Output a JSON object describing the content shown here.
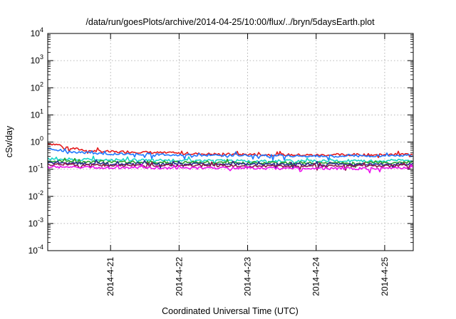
{
  "chart_data": {
    "type": "line",
    "title": "/data/run/goesPlots/archive/2014-04-25/10:00/flux/../bryn/5daysEarth.plot",
    "xlabel": "Coordinated Universal Time (UTC)",
    "ylabel": "cSv/day",
    "yscale": "log",
    "ylim": [
      0.0001,
      10000
    ],
    "xlim": [
      "2014-04-20T02:00",
      "2014-04-25T10:00"
    ],
    "yticks": [
      {
        "base": "10",
        "exp": "-4",
        "value": 0.0001
      },
      {
        "base": "10",
        "exp": "-3",
        "value": 0.001
      },
      {
        "base": "10",
        "exp": "-2",
        "value": 0.01
      },
      {
        "base": "10",
        "exp": "-1",
        "value": 0.1
      },
      {
        "base": "10",
        "exp": "0",
        "value": 1
      },
      {
        "base": "10",
        "exp": "1",
        "value": 10
      },
      {
        "base": "10",
        "exp": "2",
        "value": 100
      },
      {
        "base": "10",
        "exp": "3",
        "value": 1000
      },
      {
        "base": "10",
        "exp": "4",
        "value": 10000
      }
    ],
    "xticks": [
      {
        "label": "2014-4-21",
        "value": "2014-04-21T00:00"
      },
      {
        "label": "2014-4-22",
        "value": "2014-04-22T00:00"
      },
      {
        "label": "2014-4-23",
        "value": "2014-04-23T00:00"
      },
      {
        "label": "2014-4-24",
        "value": "2014-04-24T00:00"
      },
      {
        "label": "2014-4-25",
        "value": "2014-04-25T00:00"
      }
    ],
    "grid": true,
    "series": [
      {
        "color": "#e41a1c",
        "values": [
          [
            "2014-04-20T02:00",
            0.9
          ],
          [
            "2014-04-20T06:00",
            0.78
          ],
          [
            "2014-04-20T10:00",
            0.6
          ],
          [
            "2014-04-20T14:00",
            0.52
          ],
          [
            "2014-04-20T18:00",
            0.47
          ],
          [
            "2014-04-20T22:00",
            0.45
          ],
          [
            "2014-04-21T02:00",
            0.43
          ],
          [
            "2014-04-21T06:00",
            0.44
          ],
          [
            "2014-04-21T12:00",
            0.42
          ],
          [
            "2014-04-21T18:00",
            0.4
          ],
          [
            "2014-04-22T00:00",
            0.38
          ],
          [
            "2014-04-22T12:00",
            0.36
          ],
          [
            "2014-04-23T00:00",
            0.35
          ],
          [
            "2014-04-23T12:00",
            0.34
          ],
          [
            "2014-04-24T00:00",
            0.33
          ],
          [
            "2014-04-24T12:00",
            0.34
          ],
          [
            "2014-04-25T00:00",
            0.34
          ],
          [
            "2014-04-25T10:00",
            0.36
          ]
        ]
      },
      {
        "color": "#1f78ff",
        "values": [
          [
            "2014-04-20T02:00",
            0.56
          ],
          [
            "2014-04-20T06:00",
            0.5
          ],
          [
            "2014-04-20T10:00",
            0.44
          ],
          [
            "2014-04-20T14:00",
            0.41
          ],
          [
            "2014-04-20T18:00",
            0.39
          ],
          [
            "2014-04-20T22:00",
            0.38
          ],
          [
            "2014-04-21T02:00",
            0.37
          ],
          [
            "2014-04-21T12:00",
            0.36
          ],
          [
            "2014-04-22T00:00",
            0.34
          ],
          [
            "2014-04-22T12:00",
            0.33
          ],
          [
            "2014-04-23T00:00",
            0.32
          ],
          [
            "2014-04-23T12:00",
            0.31
          ],
          [
            "2014-04-24T00:00",
            0.3
          ],
          [
            "2014-04-24T12:00",
            0.31
          ],
          [
            "2014-04-25T00:00",
            0.31
          ],
          [
            "2014-04-25T10:00",
            0.32
          ]
        ]
      },
      {
        "color": "#17d5c6",
        "values": [
          [
            "2014-04-20T02:00",
            0.24
          ],
          [
            "2014-04-20T12:00",
            0.23
          ],
          [
            "2014-04-21T00:00",
            0.22
          ],
          [
            "2014-04-21T12:00",
            0.22
          ],
          [
            "2014-04-22T00:00",
            0.21
          ],
          [
            "2014-04-22T12:00",
            0.21
          ],
          [
            "2014-04-23T00:00",
            0.2
          ],
          [
            "2014-04-23T12:00",
            0.2
          ],
          [
            "2014-04-24T00:00",
            0.2
          ],
          [
            "2014-04-24T12:00",
            0.2
          ],
          [
            "2014-04-25T00:00",
            0.2
          ],
          [
            "2014-04-25T10:00",
            0.21
          ]
        ]
      },
      {
        "color": "#2ca02c",
        "values": [
          [
            "2014-04-20T02:00",
            0.2
          ],
          [
            "2014-04-20T12:00",
            0.19
          ],
          [
            "2014-04-21T00:00",
            0.19
          ],
          [
            "2014-04-21T12:00",
            0.18
          ],
          [
            "2014-04-22T00:00",
            0.18
          ],
          [
            "2014-04-22T12:00",
            0.18
          ],
          [
            "2014-04-23T00:00",
            0.17
          ],
          [
            "2014-04-23T12:00",
            0.17
          ],
          [
            "2014-04-24T00:00",
            0.17
          ],
          [
            "2014-04-24T12:00",
            0.17
          ],
          [
            "2014-04-25T00:00",
            0.17
          ],
          [
            "2014-04-25T10:00",
            0.18
          ]
        ]
      },
      {
        "color": "#2b2b8f",
        "values": [
          [
            "2014-04-20T02:00",
            0.17
          ],
          [
            "2014-04-20T12:00",
            0.165
          ],
          [
            "2014-04-21T00:00",
            0.16
          ],
          [
            "2014-04-21T12:00",
            0.16
          ],
          [
            "2014-04-22T00:00",
            0.155
          ],
          [
            "2014-04-22T12:00",
            0.155
          ],
          [
            "2014-04-23T00:00",
            0.15
          ],
          [
            "2014-04-23T12:00",
            0.15
          ],
          [
            "2014-04-24T00:00",
            0.15
          ],
          [
            "2014-04-24T12:00",
            0.15
          ],
          [
            "2014-04-25T00:00",
            0.15
          ],
          [
            "2014-04-25T10:00",
            0.155
          ]
        ]
      },
      {
        "color": "#8b1a4a",
        "values": [
          [
            "2014-04-20T02:00",
            0.15
          ],
          [
            "2014-04-20T12:00",
            0.145
          ],
          [
            "2014-04-21T00:00",
            0.14
          ],
          [
            "2014-04-21T12:00",
            0.14
          ],
          [
            "2014-04-22T00:00",
            0.135
          ],
          [
            "2014-04-22T12:00",
            0.135
          ],
          [
            "2014-04-23T00:00",
            0.13
          ],
          [
            "2014-04-23T12:00",
            0.13
          ],
          [
            "2014-04-24T00:00",
            0.13
          ],
          [
            "2014-04-24T12:00",
            0.13
          ],
          [
            "2014-04-25T00:00",
            0.13
          ],
          [
            "2014-04-25T10:00",
            0.135
          ]
        ]
      },
      {
        "color": "#ee10ee",
        "values": [
          [
            "2014-04-20T02:00",
            0.12
          ],
          [
            "2014-04-20T12:00",
            0.118
          ],
          [
            "2014-04-21T00:00",
            0.115
          ],
          [
            "2014-04-21T12:00",
            0.113
          ],
          [
            "2014-04-22T00:00",
            0.11
          ],
          [
            "2014-04-22T12:00",
            0.11
          ],
          [
            "2014-04-23T00:00",
            0.108
          ],
          [
            "2014-04-23T12:00",
            0.107
          ],
          [
            "2014-04-24T00:00",
            0.106
          ],
          [
            "2014-04-24T12:00",
            0.106
          ],
          [
            "2014-04-25T00:00",
            0.105
          ],
          [
            "2014-04-25T10:00",
            0.11
          ]
        ]
      }
    ]
  }
}
